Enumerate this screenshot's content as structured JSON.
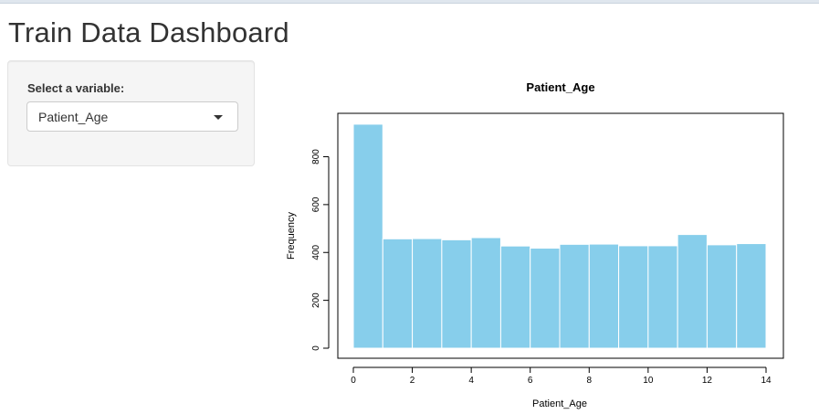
{
  "header": {
    "title": "Train Data Dashboard"
  },
  "sidebar": {
    "label": "Select a variable:",
    "select": {
      "value": "Patient_Age"
    }
  },
  "colors": {
    "bar_fill": "#87ceeb",
    "bar_stroke": "#ffffff",
    "panel_bg": "#f5f5f5"
  },
  "chart_data": {
    "type": "bar",
    "title": "Patient_Age",
    "xlabel": "Patient_Age",
    "ylabel": "Frequency",
    "bins": [
      [
        0,
        1
      ],
      [
        1,
        2
      ],
      [
        2,
        3
      ],
      [
        3,
        4
      ],
      [
        4,
        5
      ],
      [
        5,
        6
      ],
      [
        6,
        7
      ],
      [
        7,
        8
      ],
      [
        8,
        9
      ],
      [
        9,
        10
      ],
      [
        10,
        11
      ],
      [
        11,
        12
      ],
      [
        12,
        13
      ],
      [
        13,
        14
      ]
    ],
    "values": [
      936,
      457,
      458,
      453,
      462,
      427,
      418,
      434,
      435,
      428,
      428,
      475,
      432,
      437
    ],
    "xlim": [
      0,
      14
    ],
    "ylim": [
      0,
      1000
    ],
    "x_ticks": [
      "0",
      "2",
      "4",
      "6",
      "8",
      "10",
      "12",
      "14"
    ],
    "y_ticks": [
      "0",
      "200",
      "400",
      "600",
      "800"
    ],
    "grid": false
  }
}
